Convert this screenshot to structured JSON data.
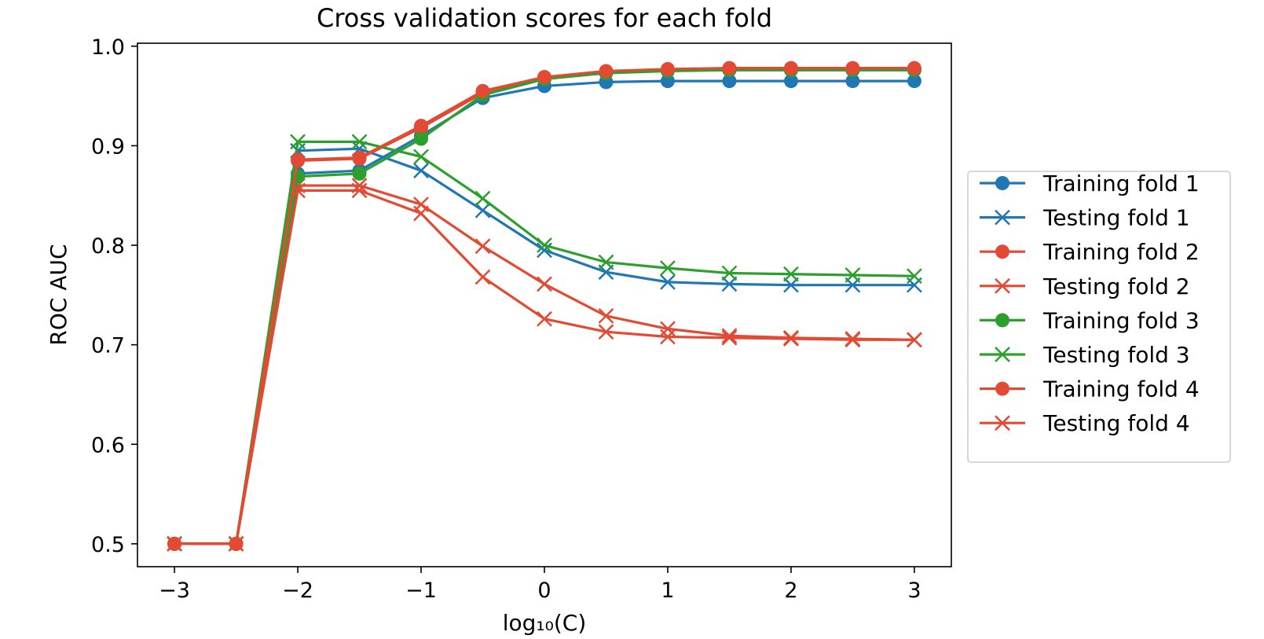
{
  "chart_data": {
    "type": "line",
    "title": "Cross validation scores for each fold",
    "xlabel": "log₁₀(C)",
    "ylabel": "ROC AUC",
    "xlim": [
      -3.3,
      3.3
    ],
    "ylim": [
      0.477,
      1.003
    ],
    "xticks": [
      -3,
      -2,
      -1,
      0,
      1,
      2,
      3
    ],
    "xtick_labels": [
      "−3",
      "−2",
      "−1",
      "0",
      "1",
      "2",
      "3"
    ],
    "yticks": [
      0.5,
      0.6,
      0.7,
      0.8,
      0.9,
      1.0
    ],
    "ytick_labels": [
      "0.5",
      "0.6",
      "0.7",
      "0.8",
      "0.9",
      "1.0"
    ],
    "grid": false,
    "legend_position": "right",
    "x": [
      -3,
      -2.5,
      -2,
      -1.5,
      -1,
      -0.5,
      0,
      0.5,
      1,
      1.5,
      2,
      2.5,
      3
    ],
    "series": [
      {
        "name": "Training fold 1",
        "marker": "circle",
        "color": "#1f77b4",
        "values": [
          0.5,
          0.5,
          0.872,
          0.875,
          0.91,
          0.948,
          0.96,
          0.964,
          0.965,
          0.965,
          0.965,
          0.965,
          0.965
        ]
      },
      {
        "name": "Testing fold 1",
        "marker": "x",
        "color": "#1f77b4",
        "values": [
          0.5,
          0.5,
          0.895,
          0.897,
          0.875,
          0.835,
          0.795,
          0.773,
          0.763,
          0.761,
          0.76,
          0.76,
          0.76
        ]
      },
      {
        "name": "Training fold 2",
        "marker": "circle",
        "color": "#e24a33",
        "values": [
          0.5,
          0.5,
          0.885,
          0.887,
          0.918,
          0.953,
          0.968,
          0.974,
          0.976,
          0.976,
          0.976,
          0.976,
          0.976
        ]
      },
      {
        "name": "Testing fold 2",
        "marker": "x",
        "color": "#e24a33",
        "values": [
          0.5,
          0.5,
          0.86,
          0.86,
          0.841,
          0.799,
          0.761,
          0.729,
          0.716,
          0.709,
          0.707,
          0.706,
          0.705
        ]
      },
      {
        "name": "Training fold 3",
        "marker": "circle",
        "color": "#2ca02c",
        "values": [
          0.5,
          0.5,
          0.869,
          0.872,
          0.907,
          0.951,
          0.967,
          0.973,
          0.975,
          0.976,
          0.976,
          0.976,
          0.976
        ]
      },
      {
        "name": "Testing fold 3",
        "marker": "x",
        "color": "#2ca02c",
        "values": [
          0.5,
          0.5,
          0.904,
          0.904,
          0.889,
          0.847,
          0.8,
          0.783,
          0.777,
          0.772,
          0.771,
          0.77,
          0.769
        ]
      },
      {
        "name": "Training fold 4",
        "marker": "circle",
        "color": "#e24a33",
        "values": [
          0.5,
          0.5,
          0.886,
          0.888,
          0.92,
          0.955,
          0.969,
          0.975,
          0.977,
          0.978,
          0.978,
          0.978,
          0.978
        ]
      },
      {
        "name": "Testing fold 4",
        "marker": "x",
        "color": "#e24a33",
        "values": [
          0.5,
          0.5,
          0.855,
          0.855,
          0.832,
          0.768,
          0.726,
          0.713,
          0.708,
          0.707,
          0.706,
          0.705,
          0.705
        ]
      }
    ]
  }
}
